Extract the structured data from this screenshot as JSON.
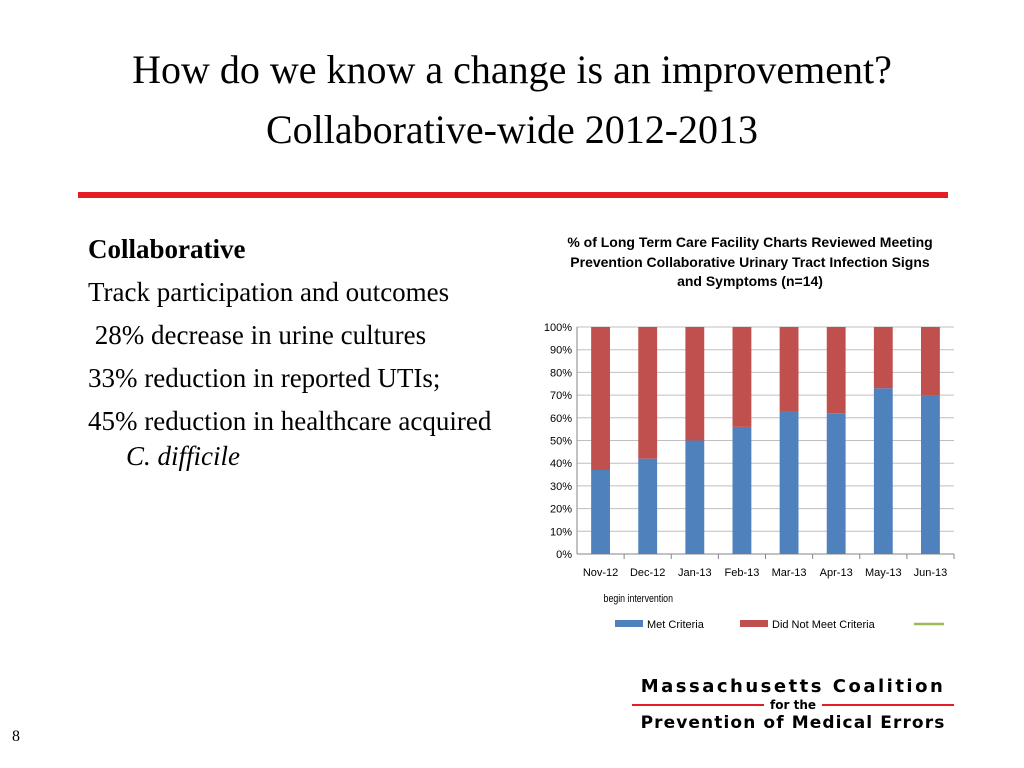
{
  "slide": {
    "title": "How do we know a change is an improvement?",
    "subtitle": "Collaborative-wide 2012-2013",
    "rule_color": "#e41d25",
    "page_number": "8"
  },
  "left": {
    "heading": "Collaborative",
    "bullets": [
      "Track participation and outcomes",
      " 28% decrease in urine cultures",
      "33% reduction in reported UTIs;",
      "45% reduction in healthcare acquired "
    ],
    "last_bullet_italic": "C. difficile"
  },
  "chart_data": {
    "type": "bar",
    "stacked": true,
    "title": "% of Long Term Care Facility Charts Reviewed Meeting Prevention Collaborative Urinary Tract Infection Signs and Symptoms (n=14)",
    "categories": [
      "Nov-12",
      "Dec-12",
      "Jan-13",
      "Feb-13",
      "Mar-13",
      "Apr-13",
      "May-13",
      "Jun-13"
    ],
    "series": [
      {
        "name": "Met Criteria",
        "color": "#4f81bd",
        "values": [
          37,
          42,
          50,
          56,
          63,
          62,
          73,
          70
        ]
      },
      {
        "name": "Did Not Meet Criteria",
        "color": "#c0504d",
        "values": [
          63,
          58,
          50,
          44,
          37,
          38,
          27,
          30
        ]
      }
    ],
    "legend_extra_line_color": "#9bbb59",
    "y_ticks": [
      "0%",
      "10%",
      "20%",
      "30%",
      "40%",
      "50%",
      "60%",
      "70%",
      "80%",
      "90%",
      "100%"
    ],
    "ylim": [
      0,
      100
    ],
    "grid": true,
    "legend": "bottom",
    "annotation": "begin intervention"
  },
  "logo": {
    "line1": "Massachusetts Coalition",
    "line2": "for the",
    "line3": "Prevention of Medical Errors",
    "line_color": "#e41d25"
  }
}
